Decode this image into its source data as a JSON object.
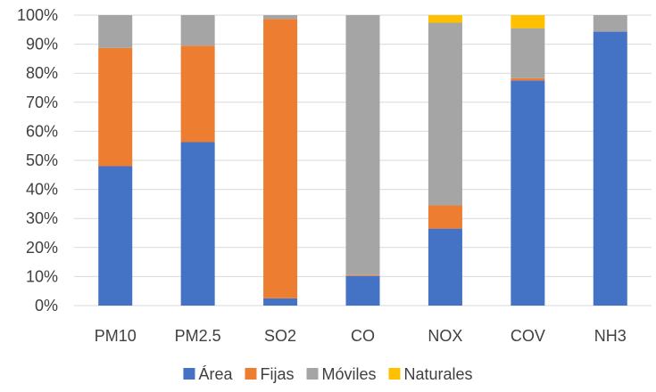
{
  "chart_data": {
    "type": "bar",
    "stacked": true,
    "percent_stacked": true,
    "categories": [
      "PM10",
      "PM2.5",
      "SO2",
      "CO",
      "NOX",
      "COV",
      "NH3"
    ],
    "series": [
      {
        "name": "Área",
        "color": "#4472C4",
        "values": [
          48,
          56.3,
          2.5,
          10.2,
          26.5,
          77.5,
          94.3
        ]
      },
      {
        "name": "Fijas",
        "color": "#ED7D31",
        "values": [
          40.7,
          33.2,
          96.2,
          0.3,
          8,
          0.8,
          0
        ]
      },
      {
        "name": "Móviles",
        "color": "#A5A5A5",
        "values": [
          11.3,
          10.5,
          1.3,
          89.5,
          62.9,
          17.2,
          5.7
        ]
      },
      {
        "name": "Naturales",
        "color": "#FFC000",
        "values": [
          0,
          0,
          0,
          0,
          2.6,
          4.5,
          0
        ]
      }
    ],
    "ylim": [
      0,
      100
    ],
    "y_ticks": [
      "0%",
      "10%",
      "20%",
      "30%",
      "40%",
      "50%",
      "60%",
      "70%",
      "80%",
      "90%",
      "100%"
    ],
    "grid": true,
    "legend_position": "bottom",
    "title": "",
    "xlabel": "",
    "ylabel": ""
  }
}
